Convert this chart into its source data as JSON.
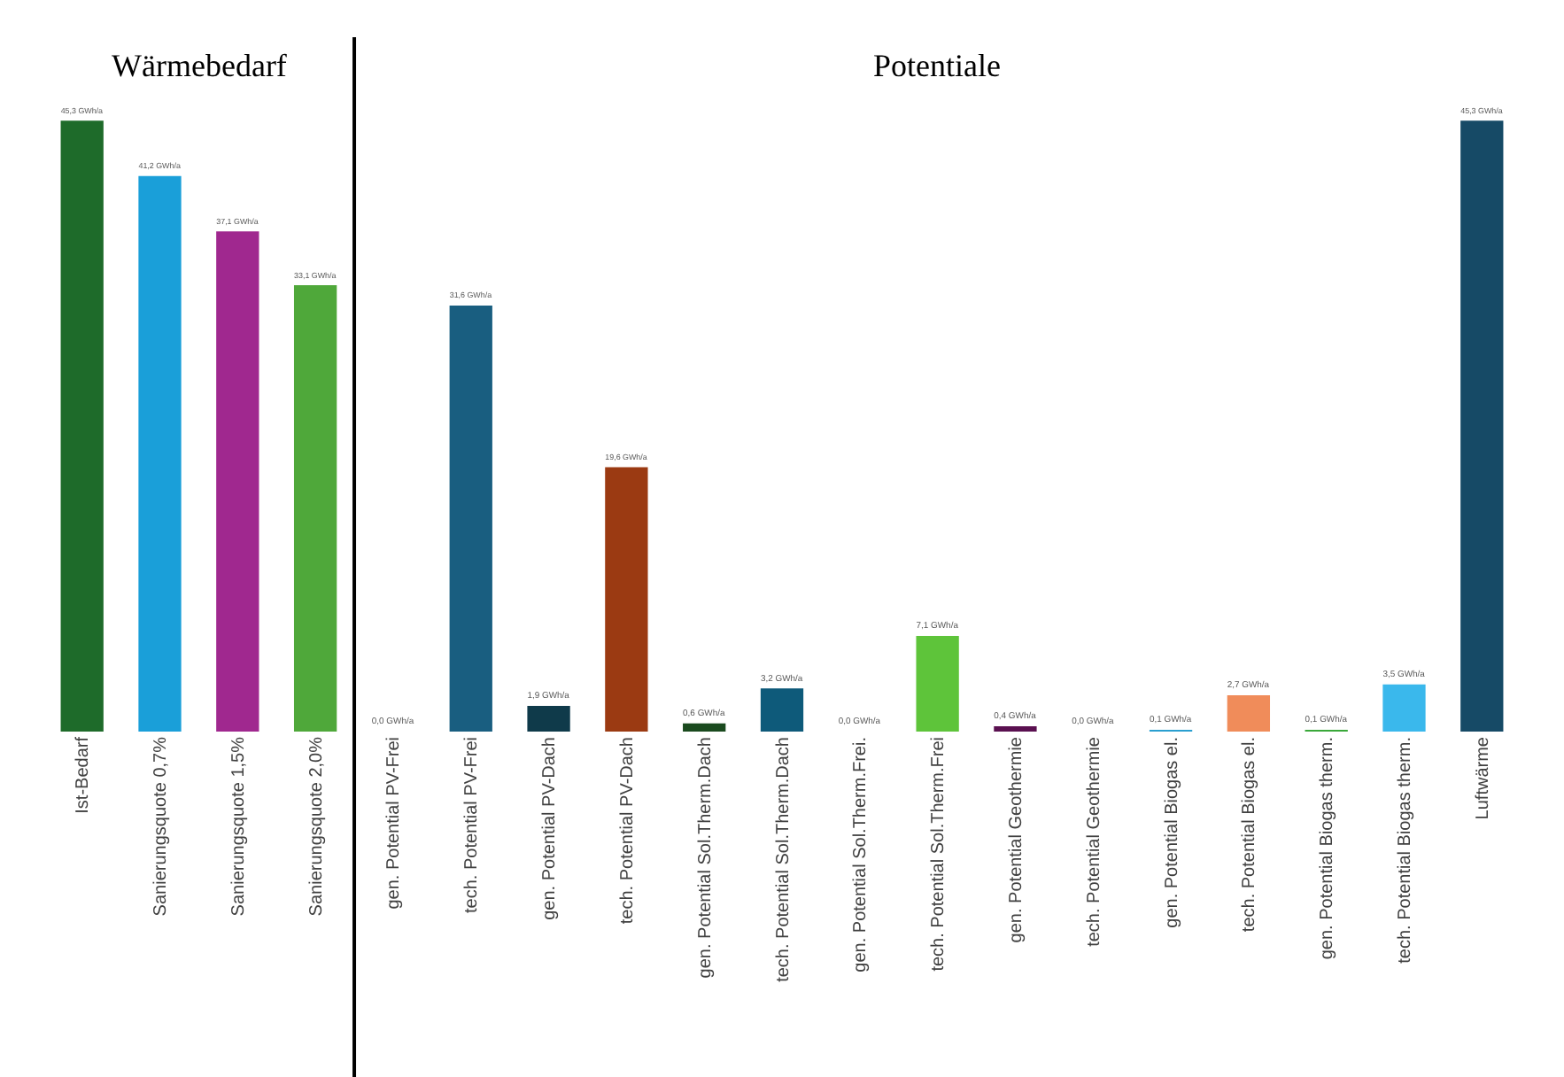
{
  "chart_data": {
    "type": "bar",
    "categories": [
      "Ist-Bedarf",
      "Sanierungsquote 0,7%",
      "Sanierungsquote 1,5%",
      "Sanierungsquote 2,0%",
      "gen. Potential PV-Frei",
      "tech. Potential PV-Frei",
      "gen. Potential PV-Dach",
      "tech. Potential PV-Dach",
      "gen. Potential Sol.Therm.Dach",
      "tech. Potential Sol.Therm.Dach",
      "gen. Potential Sol.Therm.Frei.",
      "tech. Potential Sol.Therm.Frei",
      "gen. Potential Geothermie",
      "tech. Potential Geothermie",
      "gen. Potential Biogas el.",
      "tech. Potential Biogas el.",
      "gen. Potential Biogas therm.",
      "tech. Potential Biogas therm.",
      "Luftwärme"
    ],
    "values": [
      45.3,
      41.2,
      37.1,
      33.1,
      0.0,
      31.6,
      1.9,
      19.6,
      0.6,
      3.2,
      0.0,
      7.1,
      0.4,
      0.0,
      0.1,
      2.7,
      0.1,
      3.5,
      45.3
    ],
    "colors": [
      "#1e6b2a",
      "#1a9fd9",
      "#a0288f",
      "#4fa83a",
      "#f07a3a",
      "#195e80",
      "#0f3a4a",
      "#9b3a12",
      "#1a4a1e",
      "#0e5a7a",
      "#d63ec0",
      "#5ec43a",
      "#5a1050",
      "#3a6a1e",
      "#2a9fd0",
      "#f08c5a",
      "#3aa83a",
      "#3ab8ec",
      "#164a66"
    ],
    "value_labels": [
      "45,3 GWh/a",
      "41,2 GWh/a",
      "37,1 GWh/a",
      "33,1 GWh/a",
      "0,0 GWh/a",
      "31,6 GWh/a",
      "1,9 GWh/a",
      "19,6 GWh/a",
      "0,6 GWh/a",
      "3,2 GWh/a",
      "0,0 GWh/a",
      "7,1 GWh/a",
      "0,4 GWh/a",
      "0,0 GWh/a",
      "0,1 GWh/a",
      "2,7 GWh/a",
      "0,1 GWh/a",
      "3,5 GWh/a",
      "45,3 GWh/a"
    ],
    "annotations": [
      "Wärmebedarf",
      "Potentiale"
    ],
    "tick_labels": "x"
  }
}
